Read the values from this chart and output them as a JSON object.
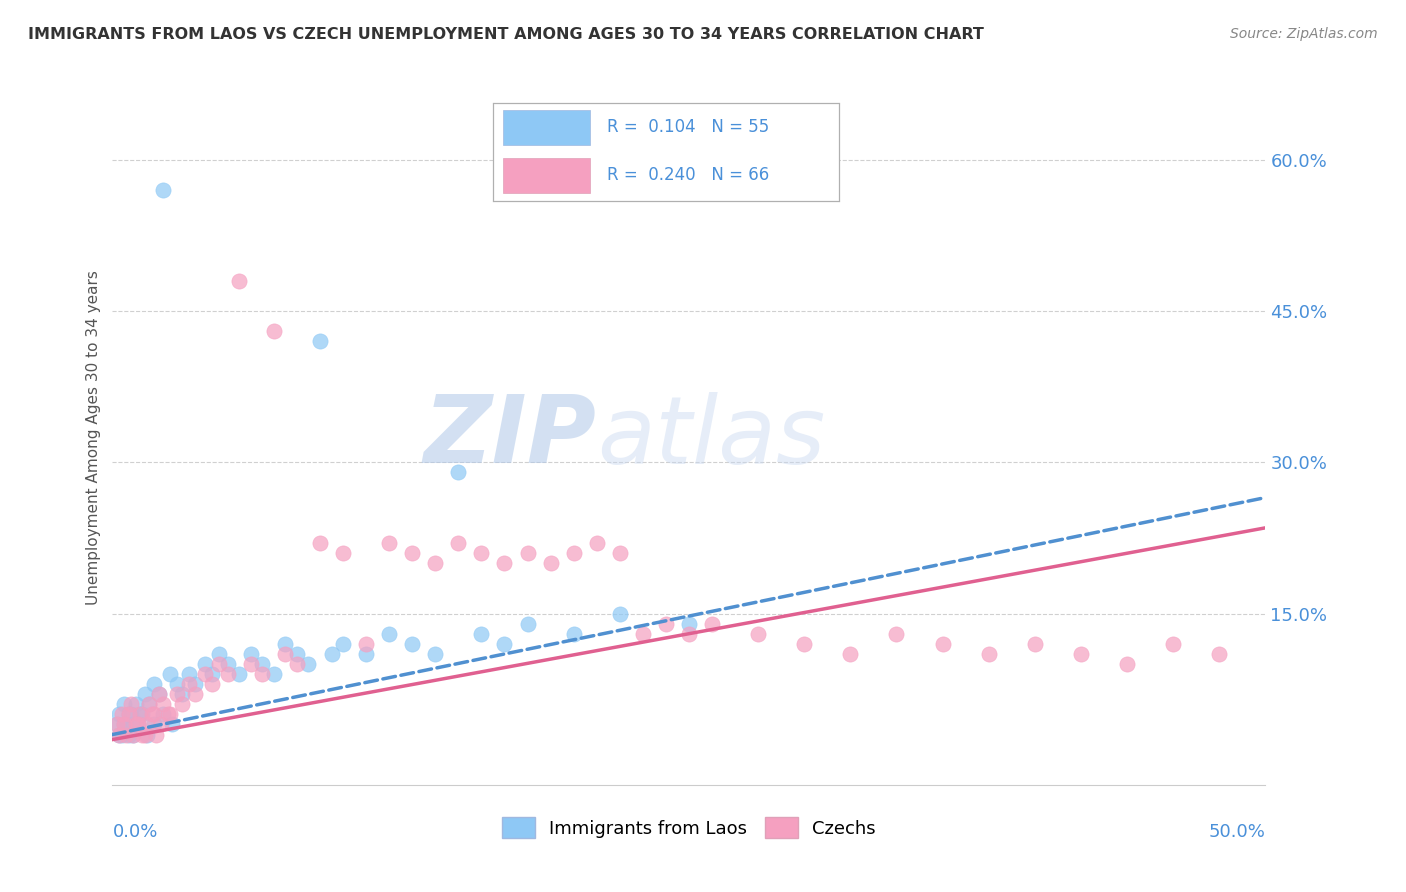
{
  "title": "IMMIGRANTS FROM LAOS VS CZECH UNEMPLOYMENT AMONG AGES 30 TO 34 YEARS CORRELATION CHART",
  "source": "Source: ZipAtlas.com",
  "ylabel": "Unemployment Among Ages 30 to 34 years",
  "ytick_labels": [
    "15.0%",
    "30.0%",
    "45.0%",
    "60.0%"
  ],
  "ytick_values": [
    0.15,
    0.3,
    0.45,
    0.6
  ],
  "xlim": [
    0.0,
    0.5
  ],
  "ylim": [
    -0.02,
    0.67
  ],
  "color_blue": "#8ec8f5",
  "color_pink": "#f5a0c0",
  "color_blue_text": "#4a90d9",
  "color_dark_blue": "#3060a0",
  "color_pink_text": "#d04070",
  "series1_label": "Immigrants from Laos",
  "series2_label": "Czechs",
  "blue_x": [
    0.002,
    0.003,
    0.004,
    0.005,
    0.006,
    0.007,
    0.008,
    0.009,
    0.01,
    0.012,
    0.014,
    0.016,
    0.018,
    0.02,
    0.022,
    0.025,
    0.028,
    0.03,
    0.033,
    0.036,
    0.04,
    0.043,
    0.046,
    0.05,
    0.055,
    0.06,
    0.065,
    0.07,
    0.075,
    0.08,
    0.085,
    0.09,
    0.095,
    0.1,
    0.11,
    0.12,
    0.13,
    0.14,
    0.15,
    0.16,
    0.17,
    0.18,
    0.2,
    0.22,
    0.25,
    0.003,
    0.005,
    0.007,
    0.009,
    0.011,
    0.013,
    0.015,
    0.018,
    0.022,
    0.026
  ],
  "blue_y": [
    0.04,
    0.05,
    0.03,
    0.06,
    0.04,
    0.03,
    0.05,
    0.04,
    0.06,
    0.05,
    0.07,
    0.06,
    0.08,
    0.07,
    0.57,
    0.09,
    0.08,
    0.07,
    0.09,
    0.08,
    0.1,
    0.09,
    0.11,
    0.1,
    0.09,
    0.11,
    0.1,
    0.09,
    0.12,
    0.11,
    0.1,
    0.42,
    0.11,
    0.12,
    0.11,
    0.13,
    0.12,
    0.11,
    0.29,
    0.13,
    0.12,
    0.14,
    0.13,
    0.15,
    0.14,
    0.03,
    0.04,
    0.05,
    0.03,
    0.04,
    0.05,
    0.03,
    0.04,
    0.05,
    0.04
  ],
  "pink_x": [
    0.002,
    0.004,
    0.006,
    0.008,
    0.01,
    0.012,
    0.014,
    0.016,
    0.018,
    0.02,
    0.022,
    0.025,
    0.028,
    0.03,
    0.033,
    0.036,
    0.04,
    0.043,
    0.046,
    0.05,
    0.055,
    0.06,
    0.065,
    0.07,
    0.075,
    0.08,
    0.09,
    0.1,
    0.11,
    0.12,
    0.13,
    0.14,
    0.15,
    0.16,
    0.17,
    0.18,
    0.19,
    0.2,
    0.21,
    0.22,
    0.23,
    0.24,
    0.25,
    0.26,
    0.28,
    0.3,
    0.32,
    0.34,
    0.36,
    0.38,
    0.4,
    0.42,
    0.44,
    0.46,
    0.48,
    0.003,
    0.005,
    0.007,
    0.009,
    0.011,
    0.013,
    0.015,
    0.017,
    0.019,
    0.021,
    0.024
  ],
  "pink_y": [
    0.04,
    0.05,
    0.03,
    0.06,
    0.04,
    0.05,
    0.03,
    0.06,
    0.05,
    0.07,
    0.06,
    0.05,
    0.07,
    0.06,
    0.08,
    0.07,
    0.09,
    0.08,
    0.1,
    0.09,
    0.48,
    0.1,
    0.09,
    0.43,
    0.11,
    0.1,
    0.22,
    0.21,
    0.12,
    0.22,
    0.21,
    0.2,
    0.22,
    0.21,
    0.2,
    0.21,
    0.2,
    0.21,
    0.22,
    0.21,
    0.13,
    0.14,
    0.13,
    0.14,
    0.13,
    0.12,
    0.11,
    0.13,
    0.12,
    0.11,
    0.12,
    0.11,
    0.1,
    0.12,
    0.11,
    0.03,
    0.04,
    0.05,
    0.03,
    0.04,
    0.03,
    0.04,
    0.05,
    0.03,
    0.04,
    0.05
  ]
}
